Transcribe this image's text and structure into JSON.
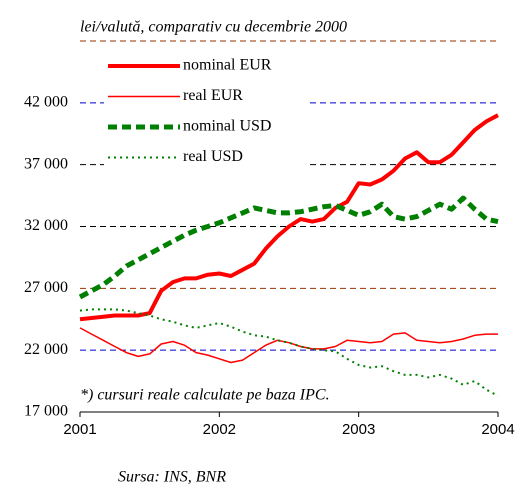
{
  "chart_data": {
    "type": "line",
    "subtitle": "lei/valută, comparativ cu decembrie 2000",
    "note": "*) cursuri reale calculate pe baza IPC.",
    "source": "Sursa: INS, BNR",
    "x": [
      2001,
      2001.083,
      2001.167,
      2001.25,
      2001.333,
      2001.417,
      2001.5,
      2001.583,
      2001.667,
      2001.75,
      2001.833,
      2001.917,
      2002,
      2002.083,
      2002.167,
      2002.25,
      2002.333,
      2002.417,
      2002.5,
      2002.583,
      2002.667,
      2002.75,
      2002.833,
      2002.917,
      2003,
      2003.083,
      2003.167,
      2003.25,
      2003.333,
      2003.417,
      2003.5,
      2003.583,
      2003.667,
      2003.75,
      2003.833,
      2003.917,
      2004
    ],
    "series": [
      {
        "name": "nominal EUR",
        "color": "#ff0000",
        "width": 4,
        "dash": "none",
        "values": [
          24500,
          24600,
          24700,
          24800,
          24800,
          24800,
          25000,
          26800,
          27500,
          27800,
          27800,
          28100,
          28200,
          28000,
          28500,
          29000,
          30200,
          31200,
          32000,
          32600,
          32400,
          32600,
          33500,
          34000,
          35500,
          35400,
          35800,
          36500,
          37500,
          38000,
          37200,
          37200,
          37800,
          38800,
          39800,
          40500,
          41000
        ]
      },
      {
        "name": "real EUR",
        "color": "#ff0000",
        "width": 1.5,
        "dash": "none",
        "values": [
          23800,
          23300,
          22800,
          22300,
          21800,
          21500,
          21700,
          22500,
          22700,
          22400,
          21800,
          21600,
          21300,
          21000,
          21200,
          21800,
          22400,
          22800,
          22600,
          22300,
          22100,
          22100,
          22300,
          22800,
          22700,
          22600,
          22700,
          23300,
          23400,
          22800,
          22700,
          22600,
          22700,
          22900,
          23200,
          23300,
          23300
        ]
      },
      {
        "name": "nominal USD",
        "color": "#008000",
        "width": 5,
        "dash": "9,5",
        "values": [
          26300,
          26800,
          27300,
          28000,
          28800,
          29300,
          29800,
          30300,
          30800,
          31300,
          31700,
          32000,
          32300,
          32700,
          33100,
          33500,
          33300,
          33100,
          33100,
          33200,
          33400,
          33600,
          33700,
          33300,
          32900,
          33200,
          33800,
          32800,
          32600,
          32800,
          33300,
          33800,
          33400,
          34300,
          33400,
          32600,
          32400
        ]
      },
      {
        "name": "real USD",
        "color": "#008000",
        "width": 2,
        "dash": "2,4",
        "values": [
          25200,
          25300,
          25300,
          25300,
          25200,
          25000,
          24800,
          24500,
          24300,
          24000,
          23800,
          24000,
          24200,
          23900,
          23500,
          23200,
          23100,
          22800,
          22600,
          22300,
          22100,
          22000,
          21900,
          21300,
          20800,
          20600,
          20700,
          20300,
          20000,
          20000,
          19800,
          20000,
          19700,
          19200,
          19500,
          18800,
          18300
        ]
      }
    ],
    "xlim": [
      2001,
      2004
    ],
    "xticks": [
      2001,
      2002,
      2003,
      2004
    ],
    "ylim": [
      17000,
      47000
    ],
    "yticks": [
      {
        "value": 17000,
        "label": "17 000"
      },
      {
        "value": 22000,
        "label": "22 000"
      },
      {
        "value": 27000,
        "label": "27 000"
      },
      {
        "value": 32000,
        "label": "32 000"
      },
      {
        "value": 37000,
        "label": "37 000"
      },
      {
        "value": 42000,
        "label": "42 000"
      }
    ],
    "grid": true,
    "grid_colors": [
      "#000000",
      "#0000cc",
      "#993300",
      "#000000",
      "#000000",
      "#0000cc"
    ]
  }
}
